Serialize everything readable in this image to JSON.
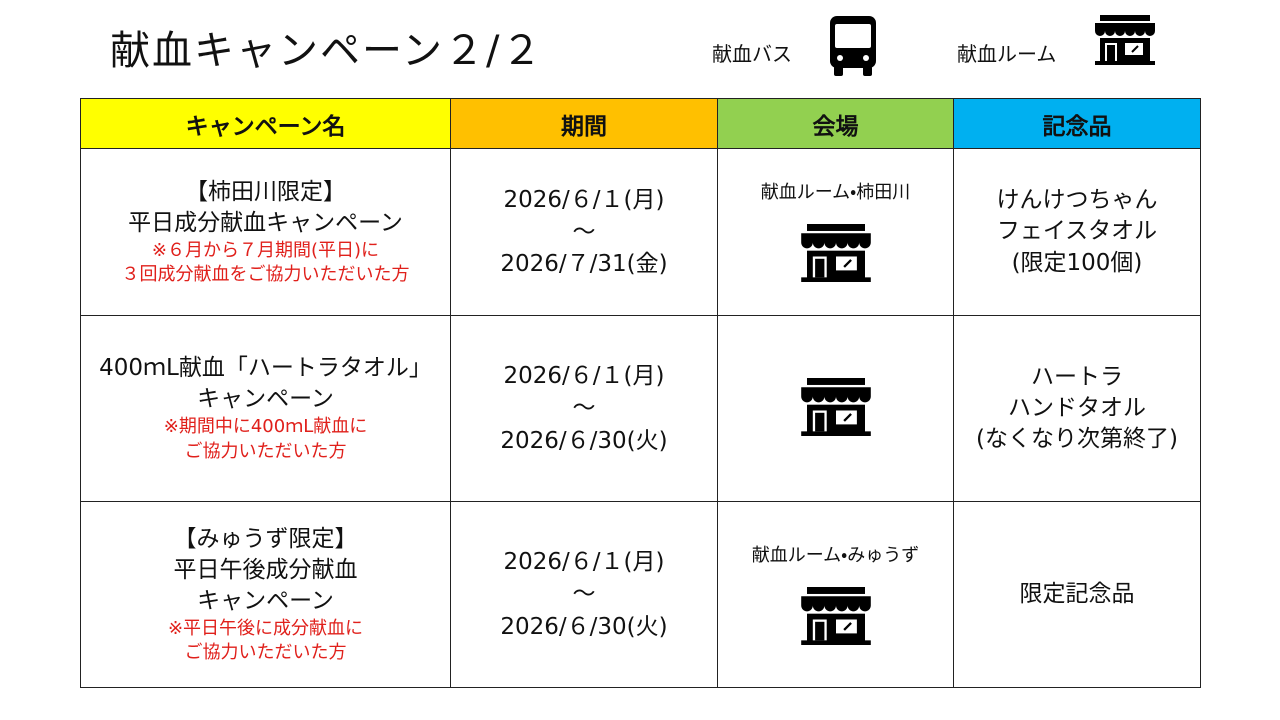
{
  "header": {
    "title": "献血キャンペーン２/２"
  },
  "legend": {
    "items": [
      "献血バス",
      "献血ルーム"
    ]
  },
  "table": {
    "columns": [
      "キャンペーン名",
      "期間",
      "会場",
      "記念品"
    ],
    "rows": [
      {
        "name": [
          "【柿田川限定】",
          "平日成分献血キャンペーン"
        ],
        "note": [
          "※６月から７月期間(平日)に",
          "３回成分献血をご協力いただいた方"
        ],
        "period": [
          "2026/６/１(月)",
          "～",
          "2026/７/31(金)"
        ],
        "venue": "献血ルーム・柿田川",
        "gift": [
          "けんけつちゃん",
          "フェイスタオル",
          "(限定100個)"
        ]
      },
      {
        "name": [
          "400ｍL献血「ハートラタオル」",
          "キャンペーン"
        ],
        "note": [
          "※期間中に400ｍL献血に",
          "ご協力いただいた方"
        ],
        "period": [
          "2026/６/１(月)",
          "～",
          "2026/６/30(火)"
        ],
        "gift": [
          "ハートラ",
          "ハンドタオル",
          "(なくなり次第終了)"
        ]
      },
      {
        "name": [
          "【みゅうず限定】",
          "平日午後成分献血",
          "キャンペーン"
        ],
        "note": [
          "※平日午後に成分献血に",
          "ご協力いただいた方"
        ],
        "period": [
          "2026/６/１(月)",
          "～",
          "2026/６/30(火)"
        ],
        "venue": "献血ルーム・みゅうず",
        "gift": [
          "限定記念品"
        ]
      }
    ]
  }
}
